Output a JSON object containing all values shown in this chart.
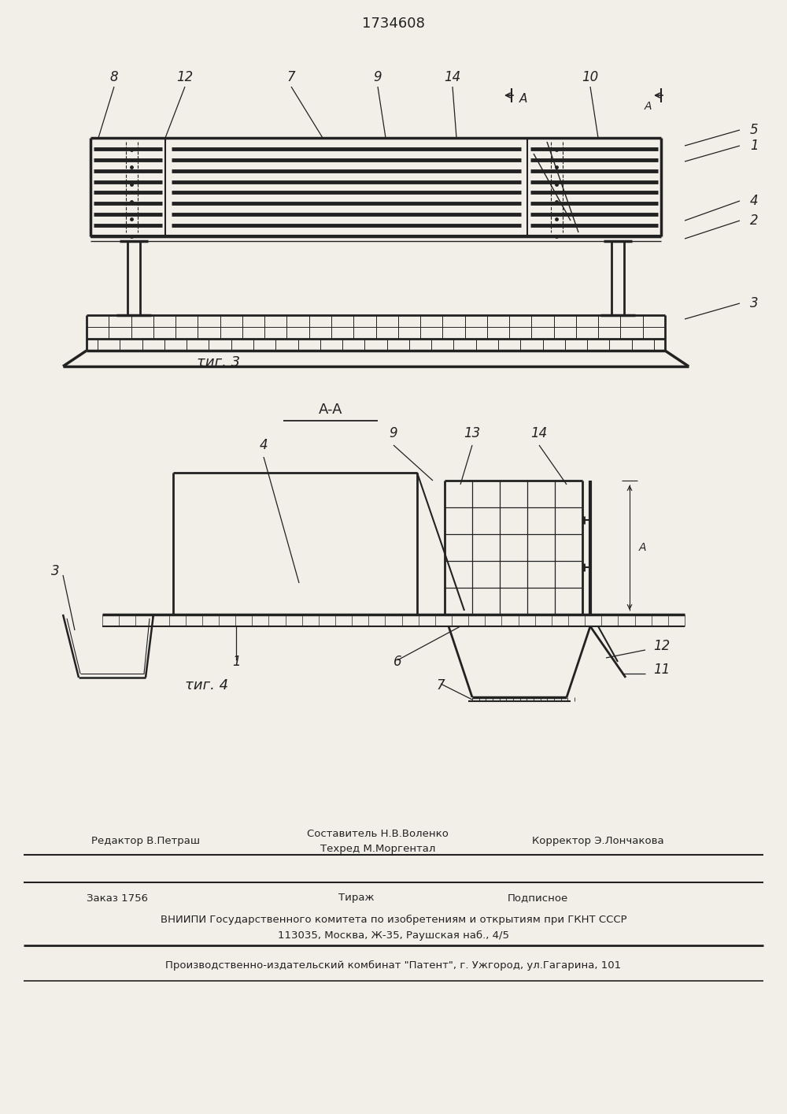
{
  "title_number": "1734608",
  "fig3_label": "τиг. 3",
  "fig4_label": "τиг. 4",
  "section_label": "A-A",
  "bg_color": "#f2efe9",
  "line_color": "#222222",
  "editor_line1": "Редактор В.Петраш",
  "composer_line1": "Составитель Н.В.Воленко",
  "composer_line2": "Техред М.Моргентал",
  "corrector_line": "Корректор Э.Лончакова",
  "order_line": "Заказ 1756",
  "tirazh_line": "Тираж",
  "podpisnoe_line": "Подписное",
  "vniip_line": "ВНИИПИ Государственного комитета по изобретениям и открытиям при ГКНТ СССР",
  "address_line": "113035, Москва, Ж-35, Раушская наб., 4/5",
  "patent_line": "Производственно-издательский комбинат \"Патент\", г. Ужгород, ул.Гагарина, 101"
}
